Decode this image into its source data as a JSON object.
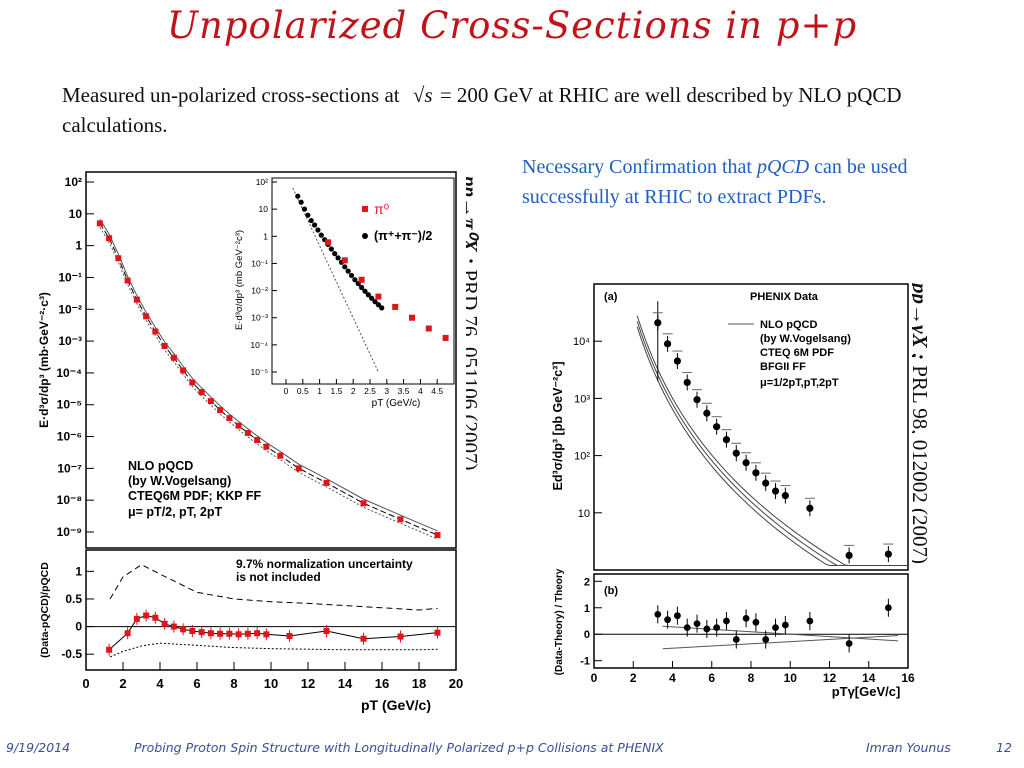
{
  "slide": {
    "title": "Unpolarized Cross-Sections in p+p",
    "intro_part1": "Measured un-polarized cross-sections at",
    "intro_sqrt": "√s",
    "intro_part2": "= 200 GeV at RHIC are well described by NLO pQCD calculations.",
    "note_part1": "Necessary Confirmation that ",
    "note_em": "pQCD",
    "note_part2": " can be used successfully at RHIC to extract PDFs.",
    "ref1_reaction": "pp→π⁰X ;",
    "ref1_citation": " PRD 76, 051106 (2007)",
    "ref2_reaction": "pp→γX ;",
    "ref2_citation": " PRL 98, 012002 (2007)"
  },
  "footer": {
    "date": "9/19/2014",
    "talk_title": "Probing Proton Spin Structure with Longitudinally Polarized p+p Collisions at PHENIX",
    "author": "Imran Younus",
    "page": "12"
  },
  "fig1": {
    "ylabel_top": "E·d³σ/dp³ (mb·GeV⁻²·c³)",
    "ylabel_bottom": "(Data-pQCD)/pQCD",
    "xlabel": "pT (GeV/c)",
    "top_ticks": [
      "10²",
      "10",
      "1",
      "10⁻¹",
      "10⁻²",
      "10⁻³",
      "10⁻⁴",
      "10⁻⁵",
      "10⁻⁶",
      "10⁻⁷",
      "10⁻⁸",
      "10⁻⁹"
    ],
    "bottom_ticks": [
      "1",
      "0.5",
      "0",
      "-0.5"
    ],
    "x_ticks": [
      "0",
      "2",
      "4",
      "6",
      "8",
      "10",
      "12",
      "14",
      "16",
      "18",
      "20"
    ],
    "legend_lines": [
      "NLO pQCD",
      "(by W.Vogelsang)",
      "CTEQ6M PDF; KKP FF",
      "μ= pT/2, pT, 2pT"
    ],
    "norm_note_lines": [
      "9.7% normalization uncertainty",
      "is not included"
    ],
    "inset": {
      "ylabel": "E·d³σ/dp³ (mb GeV⁻²c³)",
      "xlabel": "pT (GeV/c)",
      "y_ticks": [
        "10²",
        "10",
        "1",
        "10⁻¹",
        "10⁻²",
        "10⁻³",
        "10⁻⁴",
        "10⁻⁵"
      ],
      "x_ticks": [
        "0",
        "0.5",
        "1",
        "1.5",
        "2",
        "2.5",
        "3",
        "3.5",
        "4",
        "4.5"
      ],
      "legend_pi0": "π⁰",
      "legend_pipm": "(π⁺+π⁻)/2"
    }
  },
  "fig2": {
    "ylabel_top": "Ed³σ/dp³ [pb GeV⁻²c³]",
    "ylabel_bottom": "(Data-Theory) / Theory",
    "xlabel": "pTγ[GeV/c]",
    "panel_a": "(a)",
    "panel_b": "(b)",
    "header": "PHENIX Data",
    "legend_lines": [
      "NLO pQCD",
      "(by W.Vogelsang)",
      "CTEQ 6M PDF",
      "BFGII FF",
      "μ=1/2pT,pT,2pT"
    ],
    "top_ticks": [
      "10⁴",
      "10³",
      "10²",
      "10"
    ],
    "bottom_ticks": [
      "2",
      "1",
      "0",
      "-1"
    ],
    "x_ticks": [
      "0",
      "2",
      "4",
      "6",
      "8",
      "10",
      "12",
      "14",
      "16"
    ]
  },
  "chart_data": [
    {
      "type": "scatter",
      "title": "",
      "xlabel": "pT (GeV/c)",
      "ylabel": "E d3σ/dp3 (mb GeV^-2 c^3)",
      "yscale": "log",
      "xlim": [
        0,
        20
      ],
      "ylim": [
        1e-09,
        100
      ],
      "series": [
        {
          "name": "π0",
          "color": "#e0141b",
          "x": [
            0.75,
            1.25,
            1.75,
            2.25,
            2.75,
            3.25,
            3.75,
            4.25,
            4.75,
            5.25,
            5.75,
            6.25,
            6.75,
            7.25,
            7.75,
            8.25,
            8.75,
            9.25,
            9.75,
            10.5,
            11.5,
            13,
            15,
            17,
            19
          ],
          "y": [
            5,
            1.7,
            0.4,
            0.08,
            0.02,
            0.006,
            0.002,
            0.0007,
            0.0003,
            0.00012,
            5e-05,
            2.5e-05,
            1.3e-05,
            6.8e-06,
            3.8e-06,
            2.2e-06,
            1.3e-06,
            7.8e-07,
            4.8e-07,
            2.5e-07,
            1e-07,
            3.5e-08,
            8e-09,
            2.5e-09,
            8e-10
          ]
        }
      ]
    },
    {
      "type": "scatter",
      "xlabel": "pT (GeV/c)",
      "ylabel": "(Data-pQCD)/pQCD",
      "xlim": [
        0,
        20
      ],
      "ylim": [
        -0.75,
        1.35
      ],
      "series": [
        {
          "name": "π0",
          "x": [
            1.25,
            2.25,
            2.75,
            3.25,
            3.75,
            4.25,
            4.75,
            5.25,
            5.75,
            6.25,
            6.75,
            7.25,
            7.75,
            8.25,
            8.75,
            9.25,
            9.75,
            11,
            13,
            15,
            17,
            19
          ],
          "y": [
            -0.42,
            -0.12,
            0.14,
            0.2,
            0.16,
            0.05,
            0.0,
            -0.05,
            -0.08,
            -0.1,
            -0.12,
            -0.13,
            -0.13,
            -0.14,
            -0.13,
            -0.12,
            -0.14,
            -0.17,
            -0.08,
            -0.22,
            -0.18,
            -0.11
          ]
        }
      ]
    },
    {
      "type": "scatter",
      "xlabel": "pT (GeV/c)",
      "ylabel": "E d3σ/dp3 (mb GeV-2 c3)",
      "yscale": "log",
      "xlim": [
        0,
        5
      ],
      "ylim": [
        1e-05,
        100
      ],
      "series": [
        {
          "name": "π0",
          "x": [
            1.25,
            1.75,
            2.25,
            2.75,
            3.25,
            3.75,
            4.25,
            4.75
          ],
          "y": [
            0.6,
            0.13,
            0.025,
            0.006,
            0.0025,
            0.001,
            0.0004,
            0.00018
          ]
        },
        {
          "name": "(π⁺+π⁻)/2",
          "x": [
            0.35,
            0.45,
            0.55,
            0.65,
            0.75,
            0.85,
            0.95,
            1.05,
            1.15,
            1.25,
            1.35,
            1.45,
            1.55,
            1.65,
            1.75,
            1.85,
            1.95,
            2.05,
            2.15,
            2.25,
            2.35,
            2.45,
            2.55,
            2.65,
            2.75,
            2.85
          ],
          "y": [
            30,
            18,
            10,
            6,
            3.8,
            2.6,
            1.7,
            1.1,
            0.75,
            0.5,
            0.34,
            0.23,
            0.16,
            0.11,
            0.075,
            0.052,
            0.036,
            0.025,
            0.018,
            0.013,
            0.0095,
            0.007,
            0.0052,
            0.0039,
            0.003,
            0.0023
          ]
        }
      ]
    },
    {
      "type": "scatter",
      "xlabel": "pTγ [GeV/c]",
      "ylabel": "Ed3σ/dp3 [pb GeV^-2 c^3]",
      "yscale": "log",
      "xlim": [
        0,
        16
      ],
      "ylim": [
        1,
        100000
      ],
      "series": [
        {
          "name": "PHENIX Data",
          "x": [
            3.25,
            3.75,
            4.25,
            4.75,
            5.25,
            5.75,
            6.25,
            6.75,
            7.25,
            7.75,
            8.25,
            8.75,
            9.25,
            9.75,
            11,
            13,
            15
          ],
          "y": [
            21000,
            9000,
            4500,
            1900,
            950,
            550,
            320,
            190,
            110,
            75,
            50,
            33,
            24,
            20,
            12,
            1.8,
            1.9
          ]
        }
      ]
    },
    {
      "type": "scatter",
      "xlabel": "pTγ [GeV/c]",
      "ylabel": "(Data-Theory)/Theory",
      "xlim": [
        0,
        16
      ],
      "ylim": [
        -1.2,
        2.2
      ],
      "series": [
        {
          "name": "PHENIX Data",
          "x": [
            3.25,
            3.75,
            4.25,
            4.75,
            5.25,
            5.75,
            6.25,
            6.75,
            7.25,
            7.75,
            8.25,
            8.75,
            9.25,
            9.75,
            11,
            13,
            15
          ],
          "y": [
            0.75,
            0.55,
            0.7,
            0.25,
            0.4,
            0.2,
            0.25,
            0.5,
            -0.2,
            0.6,
            0.45,
            -0.2,
            0.25,
            0.35,
            0.5,
            -0.35,
            1.0
          ]
        }
      ]
    }
  ]
}
